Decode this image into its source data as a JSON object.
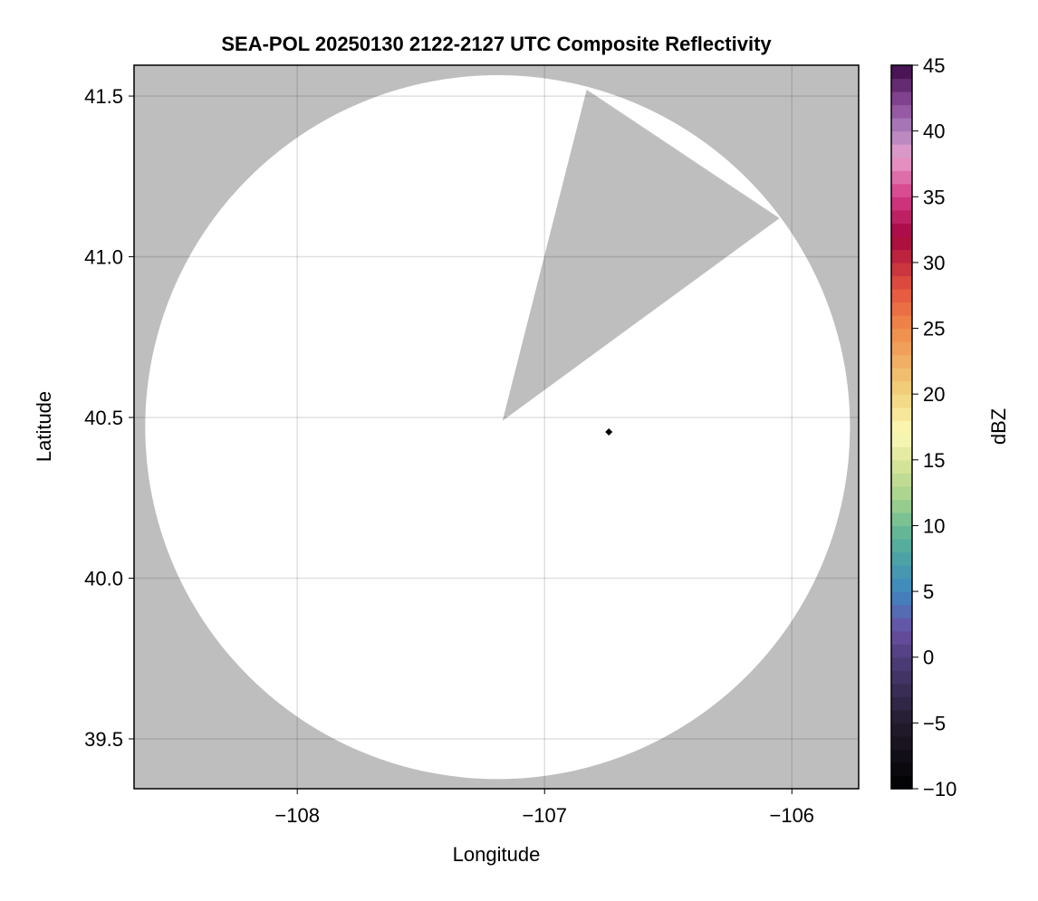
{
  "chart_data": {
    "type": "heatmap",
    "title": "SEA-POL 20250130 2122-2127 UTC Composite Reflectivity",
    "xlabel": "Longitude",
    "ylabel": "Latitude",
    "xlim": [
      -108.66,
      -105.73
    ],
    "ylim": [
      39.345,
      41.596
    ],
    "xticks": [
      -108,
      -107,
      -106
    ],
    "xtick_labels": [
      "−108",
      "−107",
      "−106"
    ],
    "yticks": [
      39.5,
      40.0,
      40.5,
      41.0,
      41.5
    ],
    "ytick_labels": [
      "39.5",
      "40.0",
      "40.5",
      "41.0",
      "41.5"
    ],
    "grid": true,
    "background_color": "#bebebe",
    "radar_coverage": {
      "center": {
        "lon": -107.19,
        "lat": 40.47
      },
      "radius_lon_deg": 1.425,
      "radius_lat_deg": 1.095,
      "fill": "#ffffff"
    },
    "blocked_sector": [
      {
        "lon": -107.17,
        "lat": 40.49
      },
      {
        "lon": -106.83,
        "lat": 41.52
      },
      {
        "lon": -106.05,
        "lat": 41.12
      }
    ],
    "marker": {
      "lon": -106.74,
      "lat": 40.455,
      "shape": "diamond",
      "color": "#000000"
    },
    "colorbar": {
      "label": "dBZ",
      "range": [
        -10,
        45
      ],
      "step": 1,
      "ticks": [
        -10,
        -5,
        0,
        5,
        10,
        15,
        20,
        25,
        30,
        35,
        40,
        45
      ],
      "tick_labels": [
        "−10",
        "−5",
        "0",
        "5",
        "10",
        "15",
        "20",
        "25",
        "30",
        "35",
        "40",
        "45"
      ],
      "colormap_stops": [
        [
          -10,
          "#000000"
        ],
        [
          -5,
          "#231c2e"
        ],
        [
          0,
          "#4f3e7c"
        ],
        [
          2,
          "#6a4fa3"
        ],
        [
          5,
          "#3f87c0"
        ],
        [
          8,
          "#4ea7a0"
        ],
        [
          10,
          "#6dbb92"
        ],
        [
          12,
          "#a3d18d"
        ],
        [
          15,
          "#dde69a"
        ],
        [
          17,
          "#fcfab8"
        ],
        [
          20,
          "#f1d47e"
        ],
        [
          25,
          "#ef8a4a"
        ],
        [
          28,
          "#e4543f"
        ],
        [
          32,
          "#a5053f"
        ],
        [
          35,
          "#d53c86"
        ],
        [
          38,
          "#e7a0cc"
        ],
        [
          40,
          "#ae82bd"
        ],
        [
          42,
          "#8e4c9c"
        ],
        [
          45,
          "#3c0a47"
        ]
      ]
    }
  }
}
